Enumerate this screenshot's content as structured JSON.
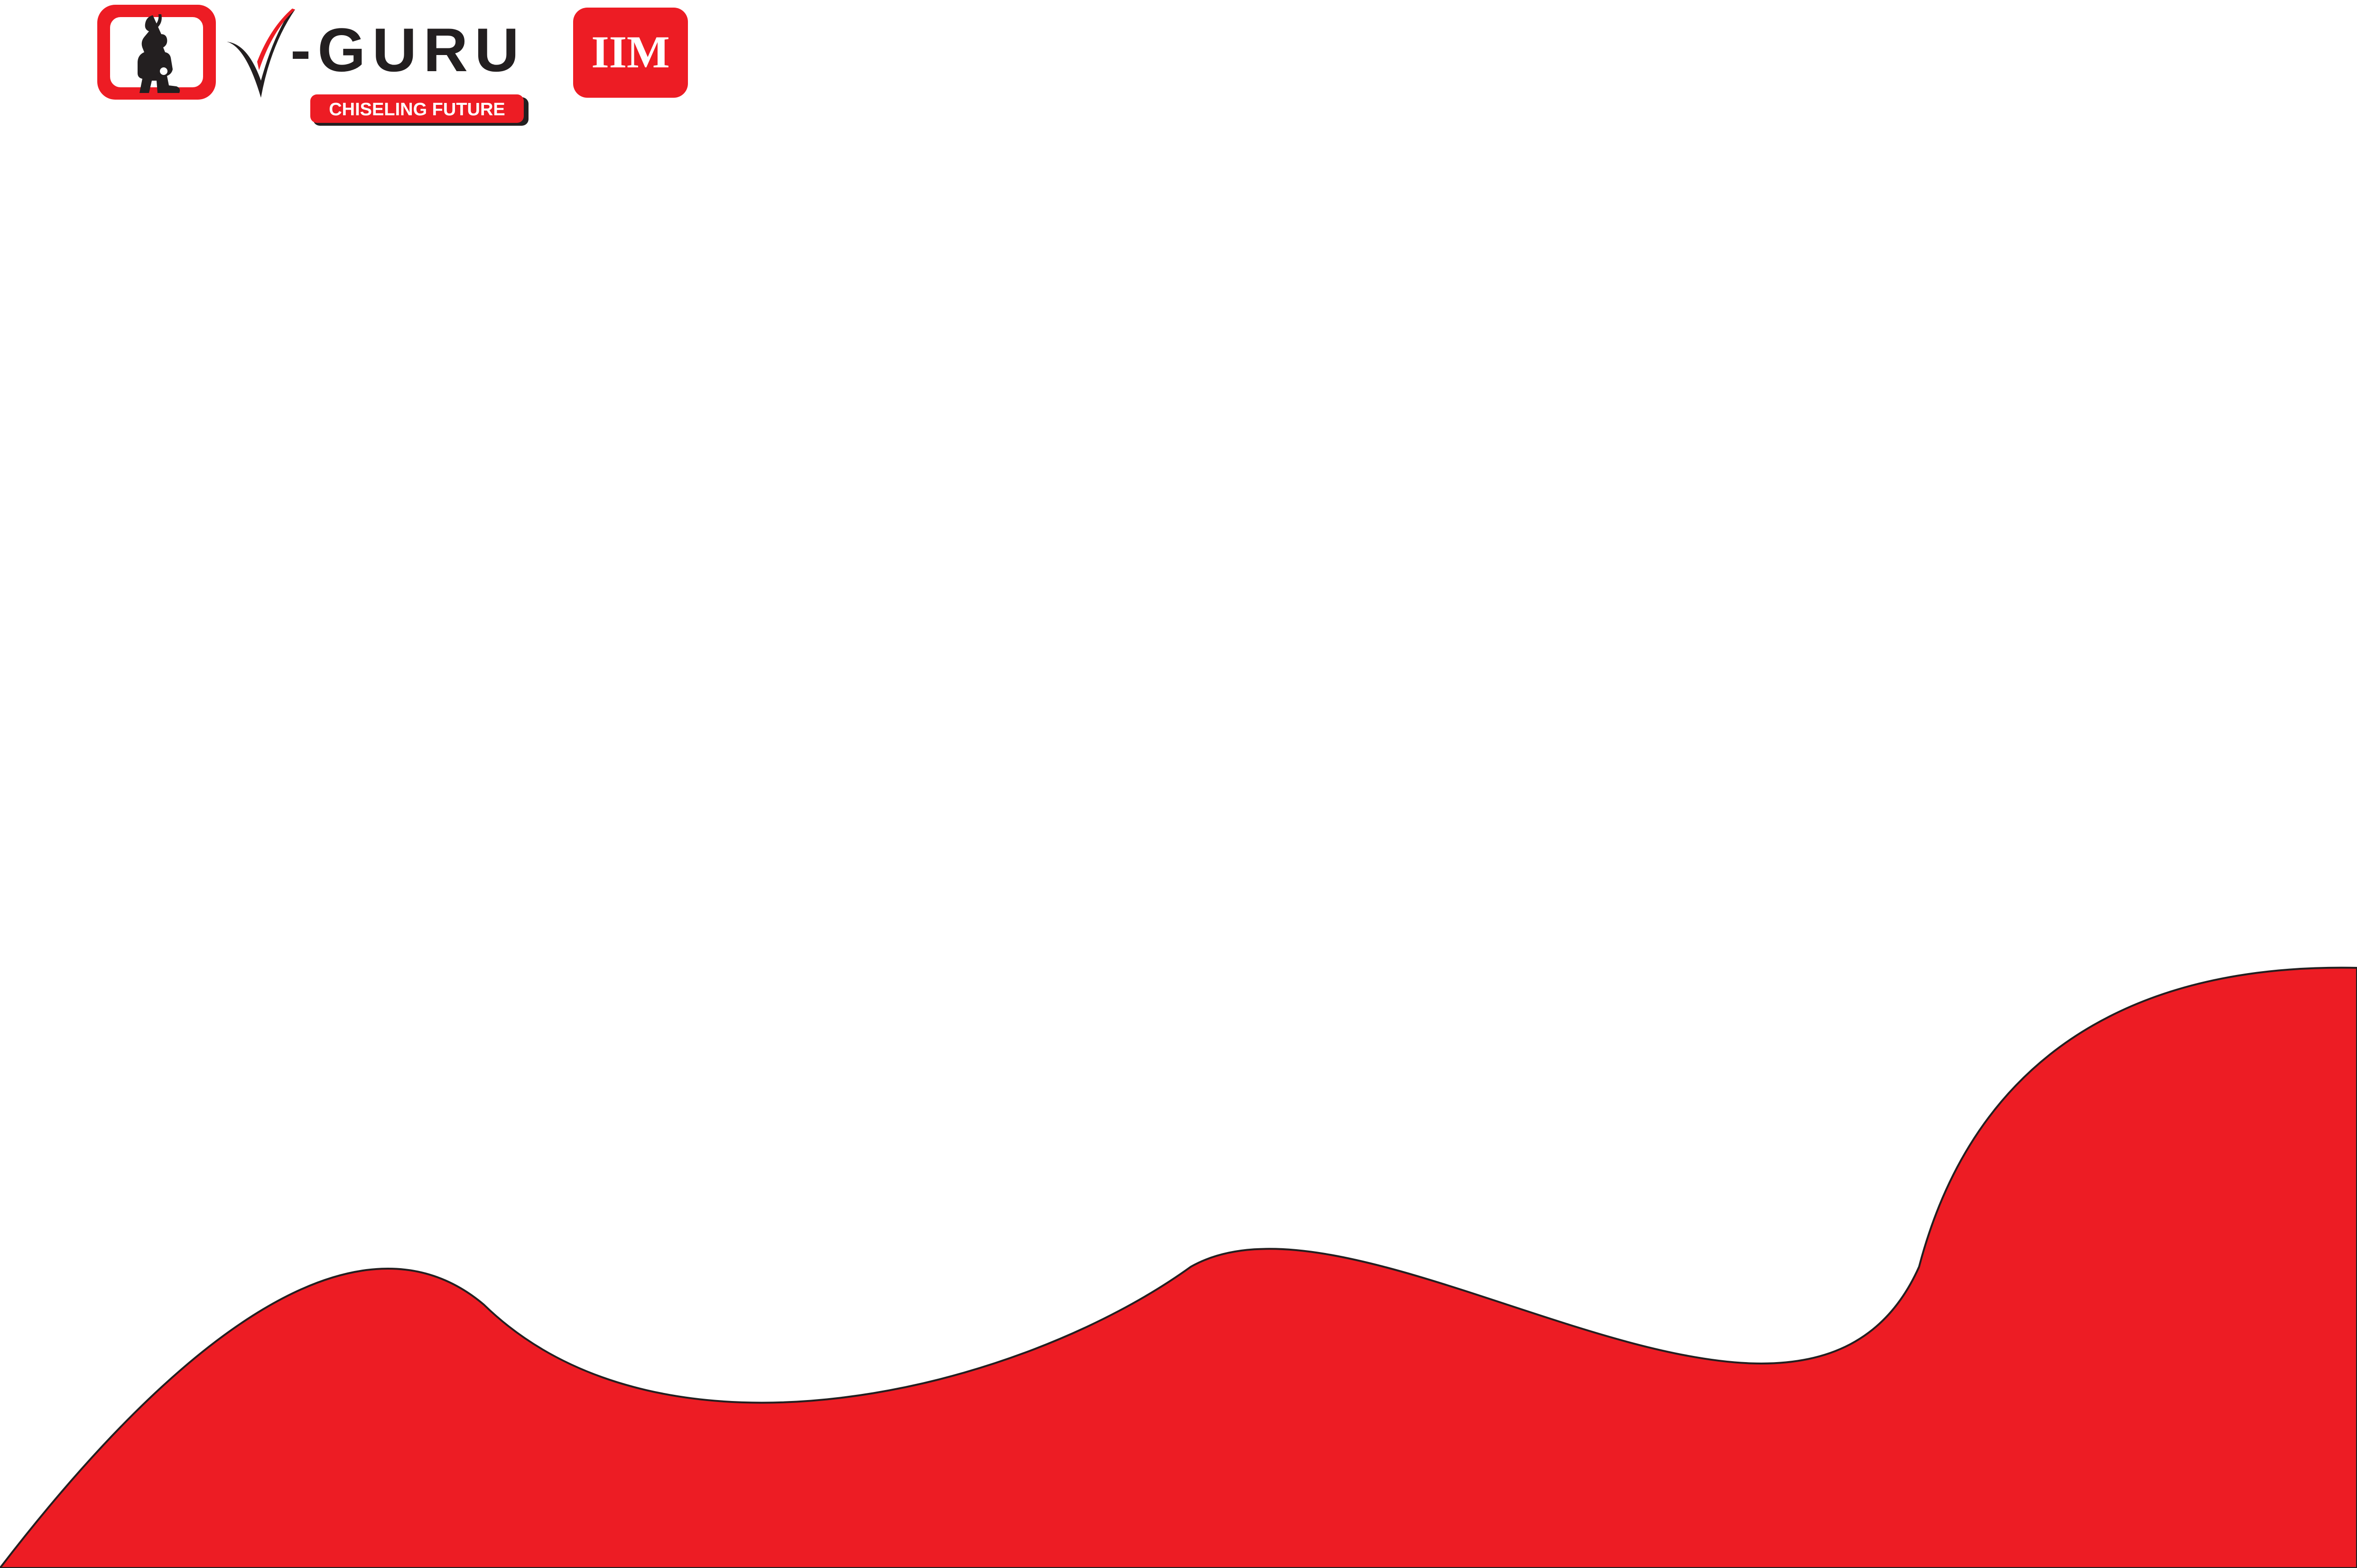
{
  "brand": {
    "name": "-GURU",
    "mark_letter": "V",
    "tagline": "CHISELING FUTURE",
    "badge": "IIM",
    "icon": "sculptor-figure-icon"
  },
  "colors": {
    "brand_red": "#ED1C24",
    "brand_dark": "#231F20",
    "background": "#FFFFFF"
  }
}
